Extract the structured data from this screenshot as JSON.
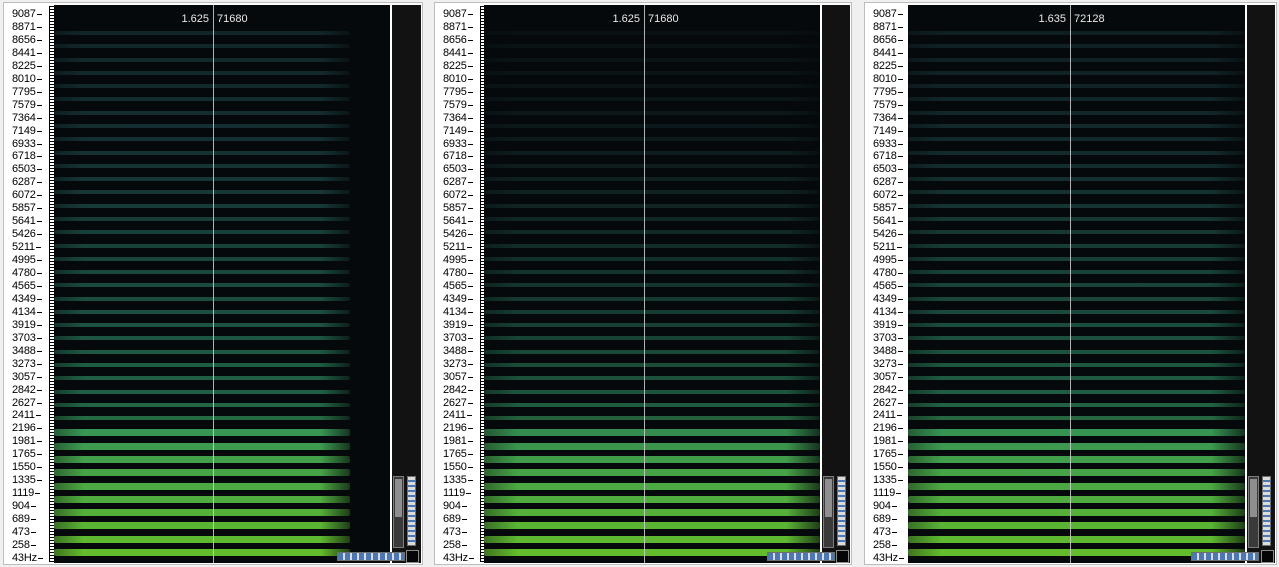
{
  "freq_labels": [
    "9087",
    "8871",
    "8656",
    "8441",
    "8225",
    "8010",
    "7795",
    "7579",
    "7364",
    "7149",
    "6933",
    "6718",
    "6503",
    "6287",
    "6072",
    "5857",
    "5641",
    "5426",
    "5211",
    "4995",
    "4780",
    "4565",
    "4349",
    "4134",
    "3919",
    "3703",
    "3488",
    "3273",
    "3057",
    "2842",
    "2627",
    "2411",
    "2196",
    "1981",
    "1765",
    "1550",
    "1335",
    "1119",
    "904",
    "689",
    "473",
    "258",
    "43Hz"
  ],
  "panels": [
    {
      "cursor_time": "1.625",
      "cursor_position": "71680",
      "sound_end": 0.88,
      "upper_harmonics_fade": 0.0,
      "colors": {
        "low": "#6dd02f",
        "mid": "#2f9a6a",
        "high": "#2b6a6e"
      }
    },
    {
      "cursor_time": "1.625",
      "cursor_position": "71680",
      "sound_end": 1.0,
      "upper_harmonics_fade": 0.85,
      "colors": {
        "low": "#6dd02f",
        "mid": "#2f9a6a",
        "high": "#2b6a6e"
      }
    },
    {
      "cursor_time": "1.635",
      "cursor_position": "72128",
      "sound_end": 1.0,
      "upper_harmonics_fade": 0.25,
      "colors": {
        "low": "#6dd02f",
        "mid": "#2f9a6a",
        "high": "#2b6a6e"
      }
    }
  ]
}
